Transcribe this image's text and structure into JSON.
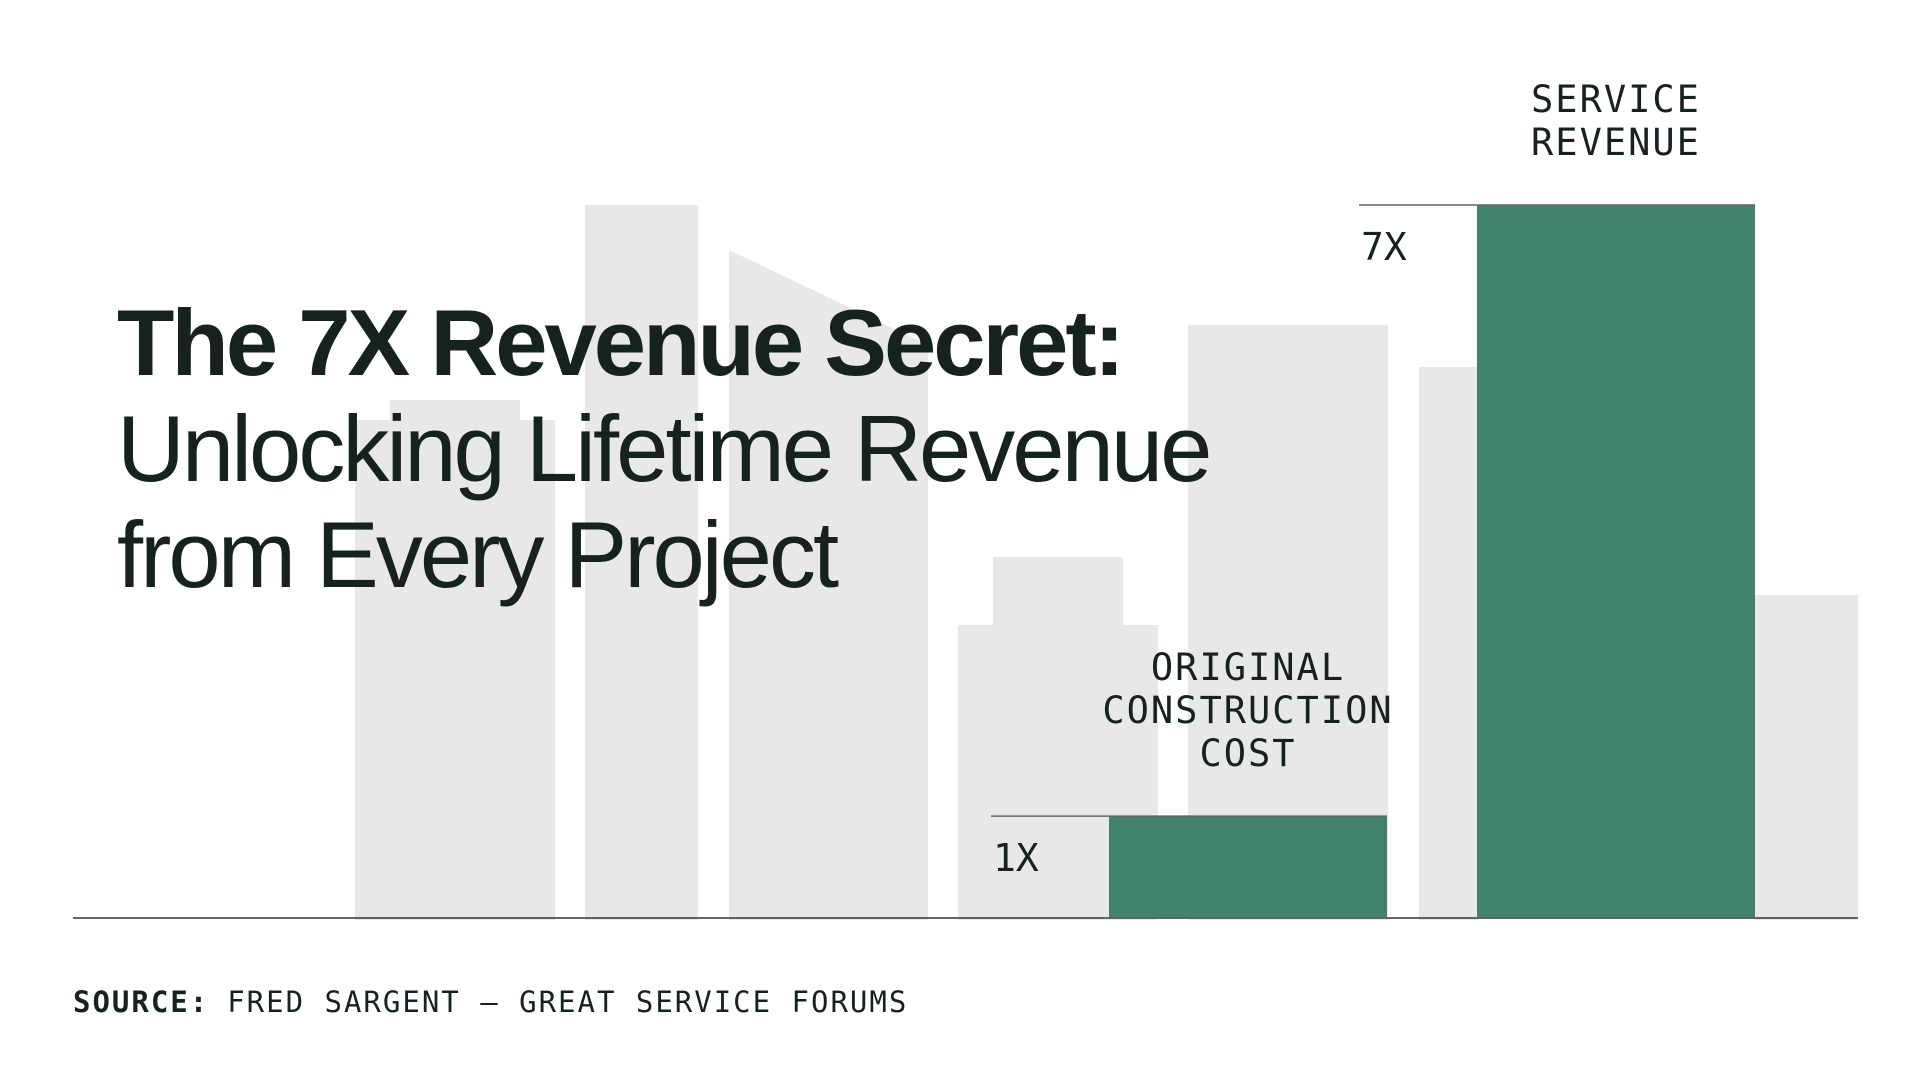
{
  "headline": {
    "line1": "The 7X Revenue Secret:",
    "line2": "Unlocking Lifetime Revenue",
    "line3": "from Every Project"
  },
  "source": {
    "label": "SOURCE:",
    "text": "FRED SARGENT – GREAT SERVICE FORUMS"
  },
  "colors": {
    "bar": "#41826a",
    "skyline": "#e7e8e7",
    "text": "#16231d",
    "axis": "#5f6764"
  },
  "chart_data": {
    "type": "bar",
    "categories": [
      "ORIGINAL CONSTRUCTION COST",
      "SERVICE REVENUE"
    ],
    "category_lines": [
      [
        "ORIGINAL",
        "CONSTRUCTION",
        "COST"
      ],
      [
        "SERVICE",
        "REVENUE"
      ]
    ],
    "values": [
      1,
      7
    ],
    "value_labels": [
      "1X",
      "7X"
    ],
    "ylim": [
      0,
      7
    ],
    "grid": false,
    "legend": "none",
    "background": "city-skyline-silhouette"
  }
}
